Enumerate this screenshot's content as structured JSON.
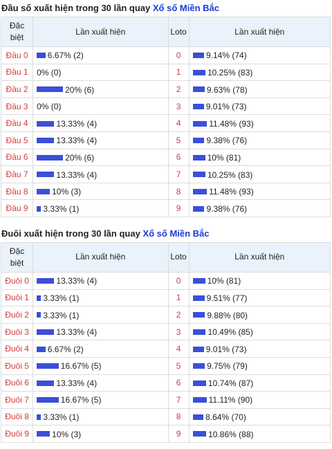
{
  "section1": {
    "title_prefix": "Đầu số xuất hiện trong 30 lần quay",
    "title_link": "Xổ số Miền Bắc",
    "headers": {
      "col1_line1": "Đặc",
      "col1_line2": "biệt",
      "col2": "Lần xuất hiện",
      "col3": "Loto",
      "col4": "Lần xuất hiện"
    },
    "rows": [
      {
        "label": "Đầu 0",
        "freq": "6.67% (2)",
        "pct": 6.67,
        "loto": "0",
        "loto_freq": "9.14% (74)",
        "loto_pct": 9.14
      },
      {
        "label": "Đầu 1",
        "freq": "0% (0)",
        "pct": 0,
        "loto": "1",
        "loto_freq": "10.25% (83)",
        "loto_pct": 10.25
      },
      {
        "label": "Đầu 2",
        "freq": "20% (6)",
        "pct": 20,
        "loto": "2",
        "loto_freq": "9.63% (78)",
        "loto_pct": 9.63
      },
      {
        "label": "Đầu 3",
        "freq": "0% (0)",
        "pct": 0,
        "loto": "3",
        "loto_freq": "9.01% (73)",
        "loto_pct": 9.01
      },
      {
        "label": "Đầu 4",
        "freq": "13.33% (4)",
        "pct": 13.33,
        "loto": "4",
        "loto_freq": "11.48% (93)",
        "loto_pct": 11.48
      },
      {
        "label": "Đầu 5",
        "freq": "13.33% (4)",
        "pct": 13.33,
        "loto": "5",
        "loto_freq": "9.38% (76)",
        "loto_pct": 9.38
      },
      {
        "label": "Đầu 6",
        "freq": "20% (6)",
        "pct": 20,
        "loto": "6",
        "loto_freq": "10% (81)",
        "loto_pct": 10
      },
      {
        "label": "Đầu 7",
        "freq": "13.33% (4)",
        "pct": 13.33,
        "loto": "7",
        "loto_freq": "10.25% (83)",
        "loto_pct": 10.25
      },
      {
        "label": "Đầu 8",
        "freq": "10% (3)",
        "pct": 10,
        "loto": "8",
        "loto_freq": "11.48% (93)",
        "loto_pct": 11.48
      },
      {
        "label": "Đầu 9",
        "freq": "3.33% (1)",
        "pct": 3.33,
        "loto": "9",
        "loto_freq": "9.38% (76)",
        "loto_pct": 9.38
      }
    ]
  },
  "section2": {
    "title_prefix": "Đuôi xuất hiện trong 30 lần quay",
    "title_link": "Xổ số Miền Bắc",
    "headers": {
      "col1_line1": "Đặc",
      "col1_line2": "biệt",
      "col2": "Lần xuất hiện",
      "col3": "Loto",
      "col4": "Lần xuất hiện"
    },
    "rows": [
      {
        "label": "Đuôi 0",
        "freq": "13.33% (4)",
        "pct": 13.33,
        "loto": "0",
        "loto_freq": "10% (81)",
        "loto_pct": 10
      },
      {
        "label": "Đuôi 1",
        "freq": "3.33% (1)",
        "pct": 3.33,
        "loto": "1",
        "loto_freq": "9.51% (77)",
        "loto_pct": 9.51
      },
      {
        "label": "Đuôi 2",
        "freq": "3.33% (1)",
        "pct": 3.33,
        "loto": "2",
        "loto_freq": "9.88% (80)",
        "loto_pct": 9.88
      },
      {
        "label": "Đuôi 3",
        "freq": "13.33% (4)",
        "pct": 13.33,
        "loto": "3",
        "loto_freq": "10.49% (85)",
        "loto_pct": 10.49
      },
      {
        "label": "Đuôi 4",
        "freq": "6.67% (2)",
        "pct": 6.67,
        "loto": "4",
        "loto_freq": "9.01% (73)",
        "loto_pct": 9.01
      },
      {
        "label": "Đuôi 5",
        "freq": "16.67% (5)",
        "pct": 16.67,
        "loto": "5",
        "loto_freq": "9.75% (79)",
        "loto_pct": 9.75
      },
      {
        "label": "Đuôi 6",
        "freq": "13.33% (4)",
        "pct": 13.33,
        "loto": "6",
        "loto_freq": "10.74% (87)",
        "loto_pct": 10.74
      },
      {
        "label": "Đuôi 7",
        "freq": "16.67% (5)",
        "pct": 16.67,
        "loto": "7",
        "loto_freq": "11.11% (90)",
        "loto_pct": 11.11
      },
      {
        "label": "Đuôi 8",
        "freq": "3.33% (1)",
        "pct": 3.33,
        "loto": "8",
        "loto_freq": "8.64% (70)",
        "loto_pct": 8.64
      },
      {
        "label": "Đuôi 9",
        "freq": "10% (3)",
        "pct": 10,
        "loto": "9",
        "loto_freq": "10.86% (88)",
        "loto_pct": 10.86
      }
    ]
  },
  "colors": {
    "bar": "#3b4fd8",
    "label": "#d23b3b",
    "link": "#1a3bd6",
    "header_bg": "#eaf2fb"
  }
}
